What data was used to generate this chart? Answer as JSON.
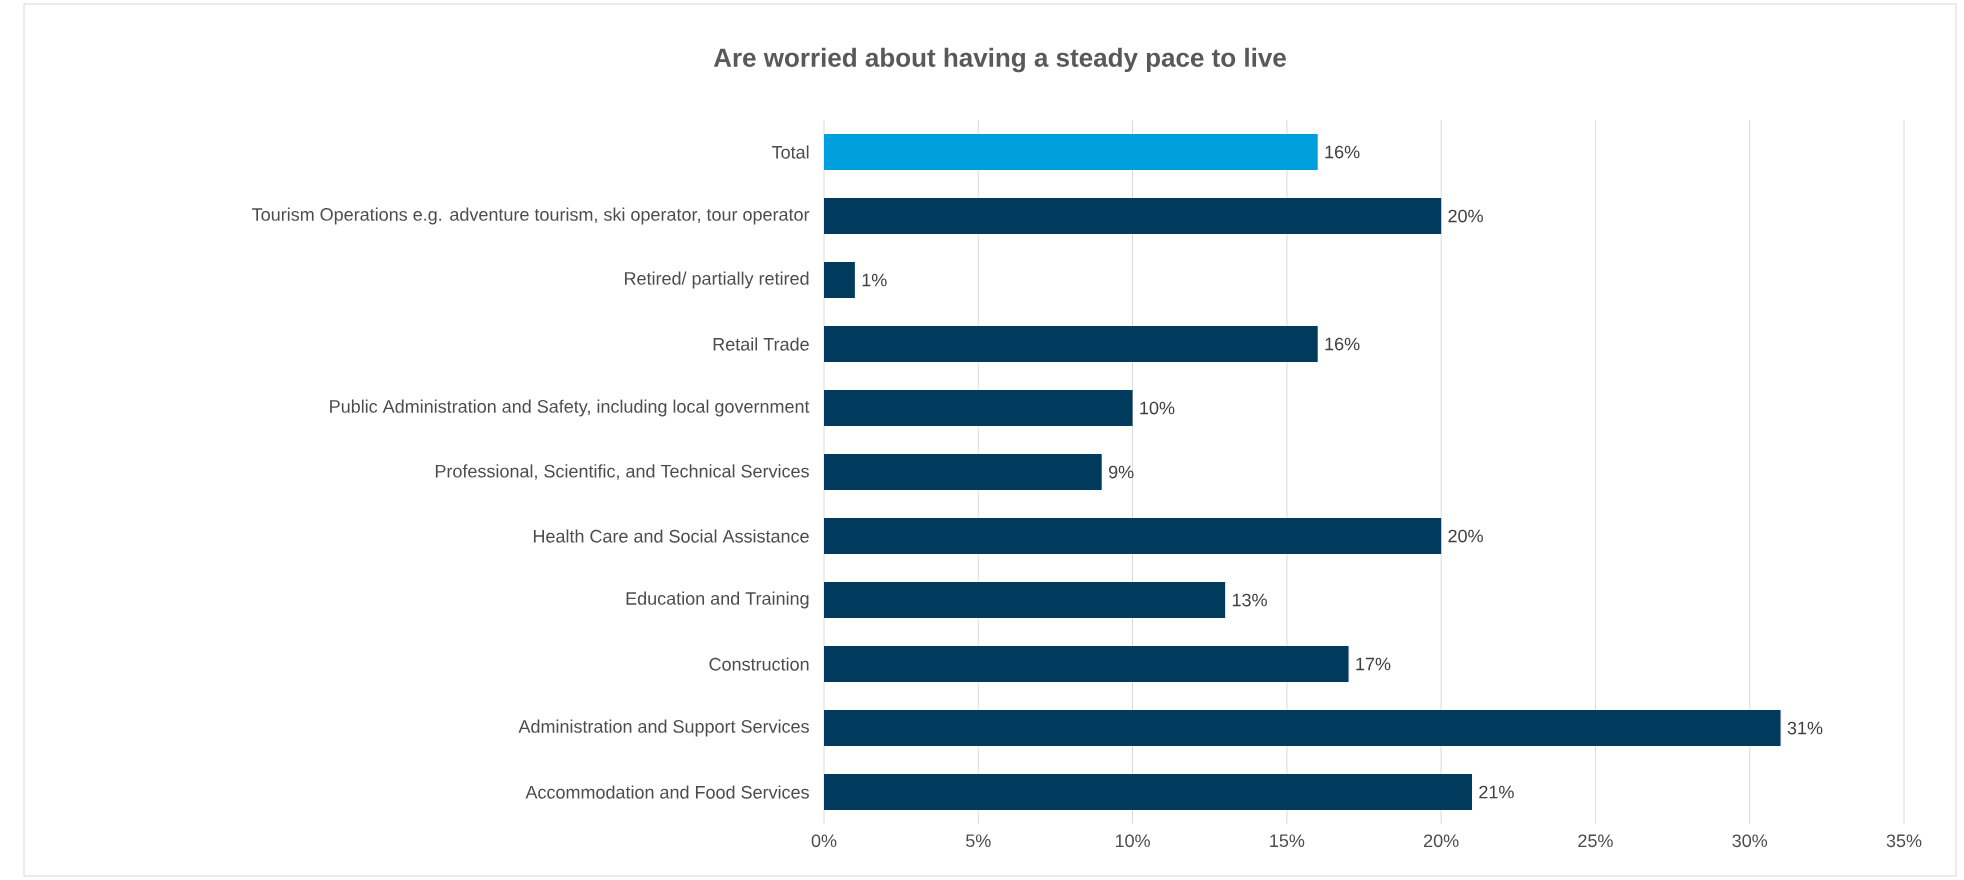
{
  "chart_data": {
    "type": "bar",
    "orientation": "horizontal",
    "title": "Are worried about having a steady pace to live",
    "categories": [
      "Total",
      "Tourism Operations e.g. adventure tourism, ski operator, tour operator",
      "Retired/ partially retired",
      "Retail Trade",
      "Public Administration and Safety, including local government",
      "Professional, Scientific, and Technical Services",
      "Health Care and Social Assistance",
      "Education and Training",
      "Construction",
      "Administration and Support Services",
      "Accommodation and Food Services"
    ],
    "values": [
      16,
      20,
      1,
      16,
      10,
      9,
      20,
      13,
      17,
      31,
      21
    ],
    "value_labels": [
      "16%",
      "20%",
      "1%",
      "16%",
      "10%",
      "9%",
      "20%",
      "13%",
      "17%",
      "31%",
      "21%"
    ],
    "colors": [
      "#00a0dc",
      "#003a5d",
      "#003a5d",
      "#003a5d",
      "#003a5d",
      "#003a5d",
      "#003a5d",
      "#003a5d",
      "#003a5d",
      "#003a5d",
      "#003a5d"
    ],
    "xlim": [
      0,
      35
    ],
    "xticks": [
      {
        "value": 0,
        "label": "0%"
      },
      {
        "value": 5,
        "label": "5%"
      },
      {
        "value": 10,
        "label": "10%"
      },
      {
        "value": 15,
        "label": "15%"
      },
      {
        "value": 20,
        "label": "20%"
      },
      {
        "value": 25,
        "label": "25%"
      },
      {
        "value": 30,
        "label": "30%"
      },
      {
        "value": 35,
        "label": "35%"
      }
    ],
    "grid": "x"
  }
}
